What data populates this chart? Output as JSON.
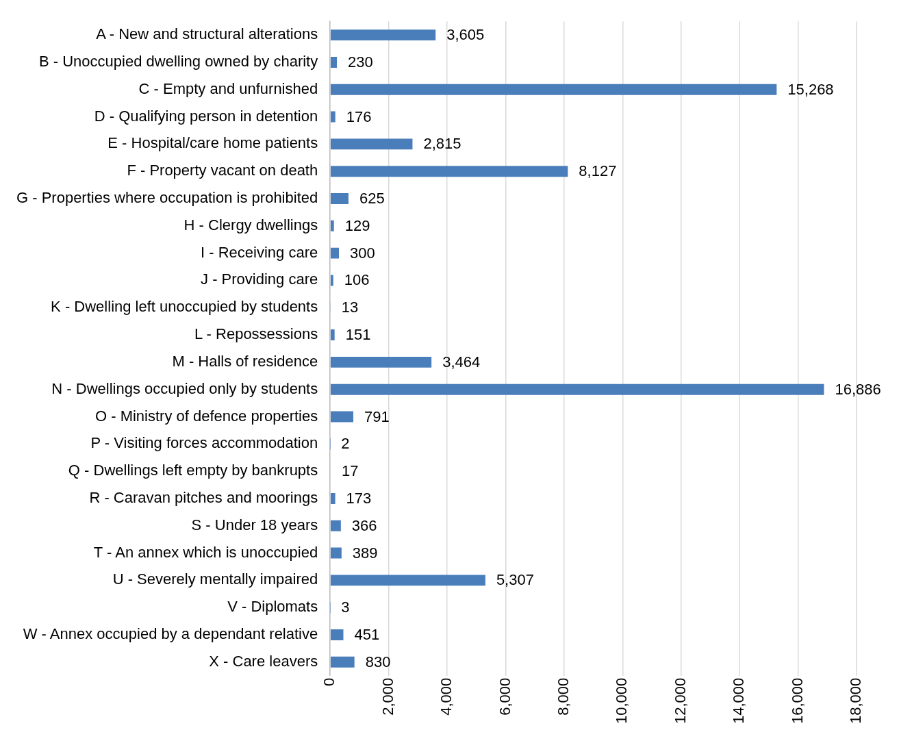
{
  "chart_data": {
    "type": "bar",
    "orientation": "horizontal",
    "categories": [
      "A - New and structural alterations",
      "B - Unoccupied dwelling owned by charity",
      "C - Empty and unfurnished",
      "D - Qualifying person in detention",
      "E - Hospital/care home patients",
      "F - Property vacant on death",
      "G - Properties where occupation is prohibited",
      "H - Clergy dwellings",
      "I - Receiving care",
      "J - Providing care",
      "K - Dwelling left unoccupied by students",
      "L - Repossessions",
      "M - Halls of residence",
      "N - Dwellings occupied only by students",
      "O - Ministry of defence properties",
      "P - Visiting forces accommodation",
      "Q - Dwellings left empty by bankrupts",
      "R - Caravan pitches and moorings",
      "S - Under 18 years",
      "T - An annex which is unoccupied",
      "U - Severely mentally impaired",
      "V - Diplomats",
      "W - Annex occupied by a dependant relative",
      "X - Care leavers"
    ],
    "values": [
      3605,
      230,
      15268,
      176,
      2815,
      8127,
      625,
      129,
      300,
      106,
      13,
      151,
      3464,
      16886,
      791,
      2,
      17,
      173,
      366,
      389,
      5307,
      3,
      451,
      830
    ],
    "value_labels": [
      "3,605",
      "230",
      "15,268",
      "176",
      "2,815",
      "8,127",
      "625",
      "129",
      "300",
      "106",
      "13",
      "151",
      "3,464",
      "16,886",
      "791",
      "2",
      "17",
      "173",
      "366",
      "389",
      "5,307",
      "3",
      "451",
      "830"
    ],
    "color": "#4a7ebb",
    "xlim": [
      0,
      18000
    ],
    "xticks": [
      {
        "value": 0,
        "label": "0"
      },
      {
        "value": 2000,
        "label": "2,000"
      },
      {
        "value": 4000,
        "label": "4,000"
      },
      {
        "value": 6000,
        "label": "6,000"
      },
      {
        "value": 8000,
        "label": "8,000"
      },
      {
        "value": 10000,
        "label": "10,000"
      },
      {
        "value": 12000,
        "label": "12,000"
      },
      {
        "value": 14000,
        "label": "14,000"
      },
      {
        "value": 16000,
        "label": "16,000"
      },
      {
        "value": 18000,
        "label": "18,000"
      }
    ],
    "grid": "x",
    "legend": false
  }
}
